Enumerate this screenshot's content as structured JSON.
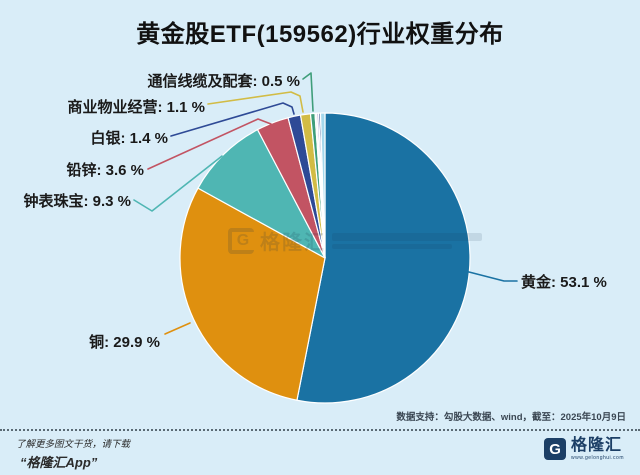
{
  "title": "黄金股ETF(159562)行业权重分布",
  "chart_data": {
    "type": "pie",
    "title": "黄金股ETF(159562)行业权重分布",
    "unit": "%",
    "label_format": "{label}: {value} %",
    "start_angle_deg": 0,
    "direction": "clockwise",
    "legend_position": "none",
    "slices": [
      {
        "label": "黄金",
        "value": 53.1,
        "color": "#1a72a3"
      },
      {
        "label": "铜",
        "value": 29.9,
        "color": "#df900f"
      },
      {
        "label": "钟表珠宝",
        "value": 9.3,
        "color": "#4fb6b3"
      },
      {
        "label": "铅锌",
        "value": 3.6,
        "color": "#c25463"
      },
      {
        "label": "白银",
        "value": 1.4,
        "color": "#2e4a96"
      },
      {
        "label": "商业物业经营",
        "value": 1.1,
        "color": "#d2bc45"
      },
      {
        "label": "通信线缆及配套",
        "value": 0.5,
        "color": "#3f9e7a"
      }
    ],
    "unlabeled_remainder": [
      {
        "value": 0.2,
        "color": "#eef5f1"
      },
      {
        "value": 0.2,
        "color": "#a8a2d4"
      },
      {
        "value": 0.2,
        "color": "#35508f"
      },
      {
        "value": 0.5,
        "color": "#a5d8ec"
      }
    ]
  },
  "watermark": {
    "icon": "G",
    "name": "格隆汇"
  },
  "source_note": "数据支持：勾股大数据、wind，截至：2025年10月9日",
  "footer": {
    "promo_line1": "了解更多图文干货，请下载",
    "promo_line2": "“格隆汇App”",
    "logo_icon": "G",
    "logo_name": "格隆汇",
    "logo_url": "www.gelonghui.com"
  },
  "colors": {
    "background": "#d9edf8",
    "title_text": "#111111",
    "label_text": "#1a1a1a",
    "slice_border": "#ffffff"
  }
}
